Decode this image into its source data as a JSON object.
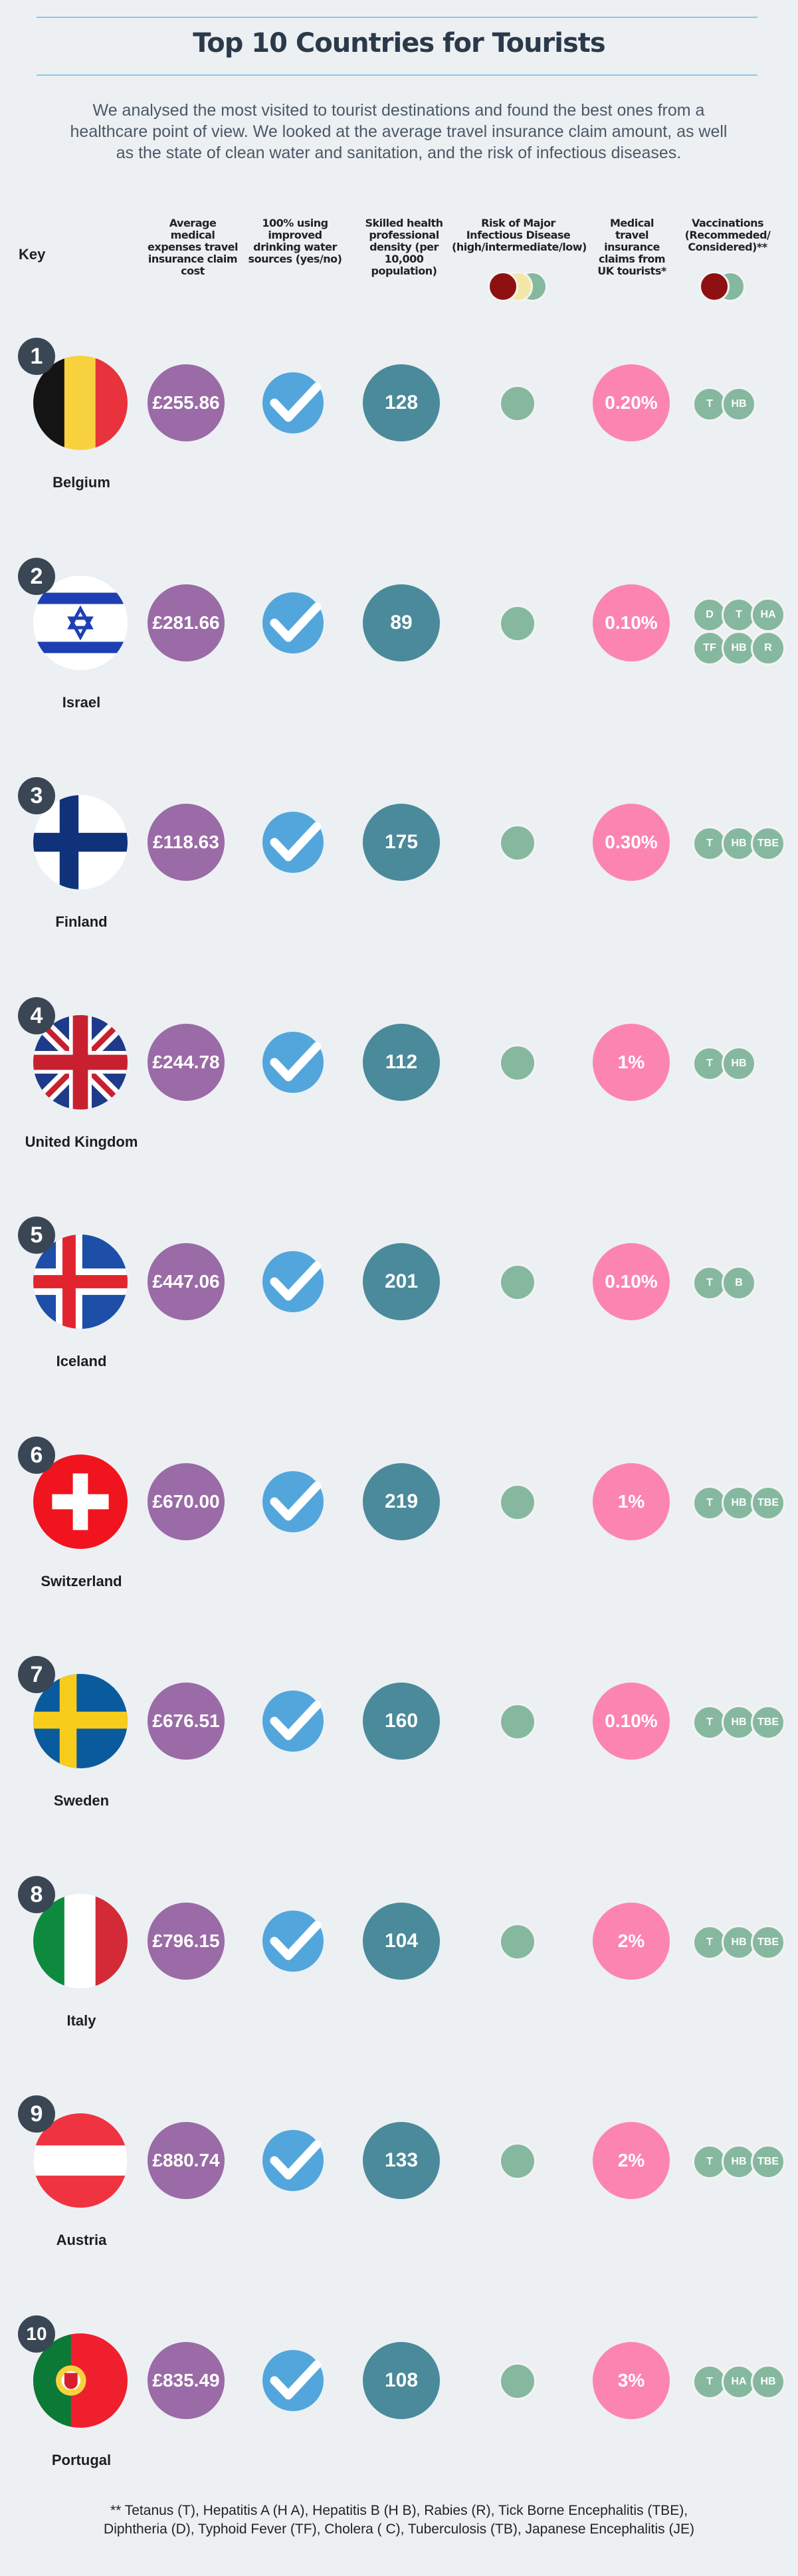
{
  "title": "Top 10 Countries for Tourists",
  "intro": "We analysed the most visited to tourist destinations and found the best ones from a healthcare point of view. We looked at the average travel insurance claim amount, as well as the state of clean water and sanitation, and the risk of infectious diseases.",
  "key_label": "Key",
  "columns": {
    "cost": "Average medical expenses travel insurance claim cost",
    "water": "100% using improved drinking water sources (yes/no)",
    "density": "Skilled health professional density (per 10,000 population)",
    "risk": "Risk of Major Infectious Disease (high/intermediate/low)",
    "claims": "Medical travel insurance claims from UK tourists*",
    "vax": "Vaccinations (Recommeded/ Considered)**"
  },
  "colors": {
    "background": "#ecf0f3",
    "cost": "#9a6ba6",
    "water": "#52a6dc",
    "density": "#4a8a9a",
    "claims": "#fc85b0",
    "risk_high": "#8f1010",
    "risk_intermediate": "#f4e7a6",
    "risk_low": "#86b8a0",
    "vaccine": "#86b8a0",
    "badge": "#3a4654"
  },
  "countries": [
    {
      "rank": "1",
      "name": "Belgium",
      "flag": "belgium-flag",
      "cost": "£255.86",
      "water": "yes",
      "density": "128",
      "risk": "low",
      "claims": "0.20%",
      "vax": [
        "T",
        "HB"
      ]
    },
    {
      "rank": "2",
      "name": "Israel",
      "flag": "israel-flag",
      "cost": "£281.66",
      "water": "yes",
      "density": "89",
      "risk": "low",
      "claims": "0.10%",
      "vax": [
        "D",
        "T",
        "HA",
        "TF",
        "HB",
        "R"
      ]
    },
    {
      "rank": "3",
      "name": "Finland",
      "flag": "finland-flag",
      "cost": "£118.63",
      "water": "yes",
      "density": "175",
      "risk": "low",
      "claims": "0.30%",
      "vax": [
        "T",
        "HB",
        "TBE"
      ]
    },
    {
      "rank": "4",
      "name": "United Kingdom",
      "flag": "uk-flag",
      "cost": "£244.78",
      "water": "yes",
      "density": "112",
      "risk": "low",
      "claims": "1%",
      "vax": [
        "T",
        "HB"
      ]
    },
    {
      "rank": "5",
      "name": "Iceland",
      "flag": "iceland-flag",
      "cost": "£447.06",
      "water": "yes",
      "density": "201",
      "risk": "low",
      "claims": "0.10%",
      "vax": [
        "T",
        "B"
      ]
    },
    {
      "rank": "6",
      "name": "Switzerland",
      "flag": "switzerland-flag",
      "cost": "£670.00",
      "water": "yes",
      "density": "219",
      "risk": "low",
      "claims": "1%",
      "vax": [
        "T",
        "HB",
        "TBE"
      ]
    },
    {
      "rank": "7",
      "name": "Sweden",
      "flag": "sweden-flag",
      "cost": "£676.51",
      "water": "yes",
      "density": "160",
      "risk": "low",
      "claims": "0.10%",
      "vax": [
        "T",
        "HB",
        "TBE"
      ]
    },
    {
      "rank": "8",
      "name": "Italy",
      "flag": "italy-flag",
      "cost": "£796.15",
      "water": "yes",
      "density": "104",
      "risk": "low",
      "claims": "2%",
      "vax": [
        "T",
        "HB",
        "TBE"
      ]
    },
    {
      "rank": "9",
      "name": "Austria",
      "flag": "austria-flag",
      "cost": "£880.74",
      "water": "yes",
      "density": "133",
      "risk": "low",
      "claims": "2%",
      "vax": [
        "T",
        "HB",
        "TBE"
      ]
    },
    {
      "rank": "10",
      "name": "Portugal",
      "flag": "portugal-flag",
      "cost": "£835.49",
      "water": "yes",
      "density": "108",
      "risk": "low",
      "claims": "3%",
      "vax": [
        "T",
        "HA",
        "HB"
      ]
    }
  ],
  "footnote_line1": "** Tetanus (T), Hepatitis A (H A), Hepatitis B (H B), Rabies (R), Tick Borne Encephalitis (TBE),",
  "footnote_line2": "Diphtheria (D), Typhoid Fever (TF), Cholera ( C), Tuberculosis (TB), Japanese Encephalitis (JE)"
}
